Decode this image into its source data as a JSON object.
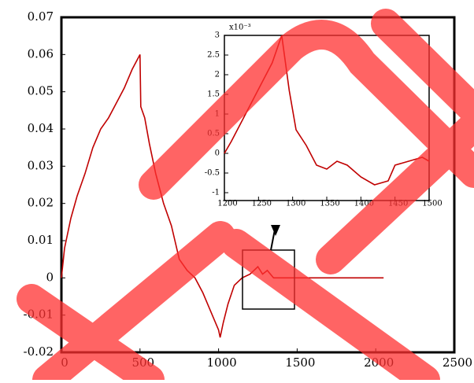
{
  "chart_data": [
    {
      "type": "line",
      "x": [
        0,
        20,
        60,
        100,
        150,
        200,
        250,
        300,
        350,
        400,
        450,
        500,
        505,
        530,
        560,
        600,
        650,
        700,
        750,
        800,
        850,
        900,
        950,
        1000,
        1010,
        1030,
        1060,
        1100,
        1150,
        1200,
        1250,
        1280,
        1310,
        1350,
        1500,
        2050
      ],
      "series": [
        {
          "color": "#c00000",
          "values": [
            0,
            0.008,
            0.016,
            0.022,
            0.028,
            0.035,
            0.04,
            0.043,
            0.047,
            0.051,
            0.056,
            0.06,
            0.046,
            0.043,
            0.036,
            0.028,
            0.02,
            0.014,
            0.005,
            0.002,
            0.0,
            -0.004,
            -0.009,
            -0.014,
            -0.016,
            -0.012,
            -0.007,
            -0.002,
            0.0,
            0.001,
            0.003,
            0.001,
            0.002,
            0,
            0,
            0
          ]
        }
      ],
      "xlim": [
        0,
        2500
      ],
      "xticks": [
        0,
        500,
        1000,
        1500,
        2000,
        2500
      ],
      "ylim": [
        -0.02,
        0.07
      ],
      "yticks": [
        -0.02,
        -0.01,
        0,
        0.01,
        0.02,
        0.03,
        0.04,
        0.05,
        0.06,
        0.07
      ]
    },
    {
      "type": "line",
      "y_multiplier": "x10⁻³",
      "x": [
        1200,
        1210,
        1225,
        1240,
        1255,
        1270,
        1284,
        1295,
        1305,
        1320,
        1335,
        1350,
        1365,
        1380,
        1400,
        1420,
        1440,
        1450,
        1470,
        1490,
        1500
      ],
      "series": [
        {
          "color": "#c00000",
          "values": [
            0,
            0.3,
            0.8,
            1.3,
            1.8,
            2.3,
            3.0,
            1.6,
            0.6,
            0.2,
            -0.3,
            -0.4,
            -0.2,
            -0.3,
            -0.6,
            -0.8,
            -0.7,
            -0.3,
            -0.2,
            -0.1,
            -0.2
          ]
        }
      ],
      "xlim": [
        1200,
        1500
      ],
      "xticks": [
        1200,
        1250,
        1300,
        1350,
        1400,
        1450,
        1500
      ],
      "ylim": [
        -1.2,
        3
      ],
      "yticks": [
        -1,
        -0.5,
        0,
        0.5,
        1,
        1.5,
        2,
        2.5,
        3
      ]
    }
  ]
}
